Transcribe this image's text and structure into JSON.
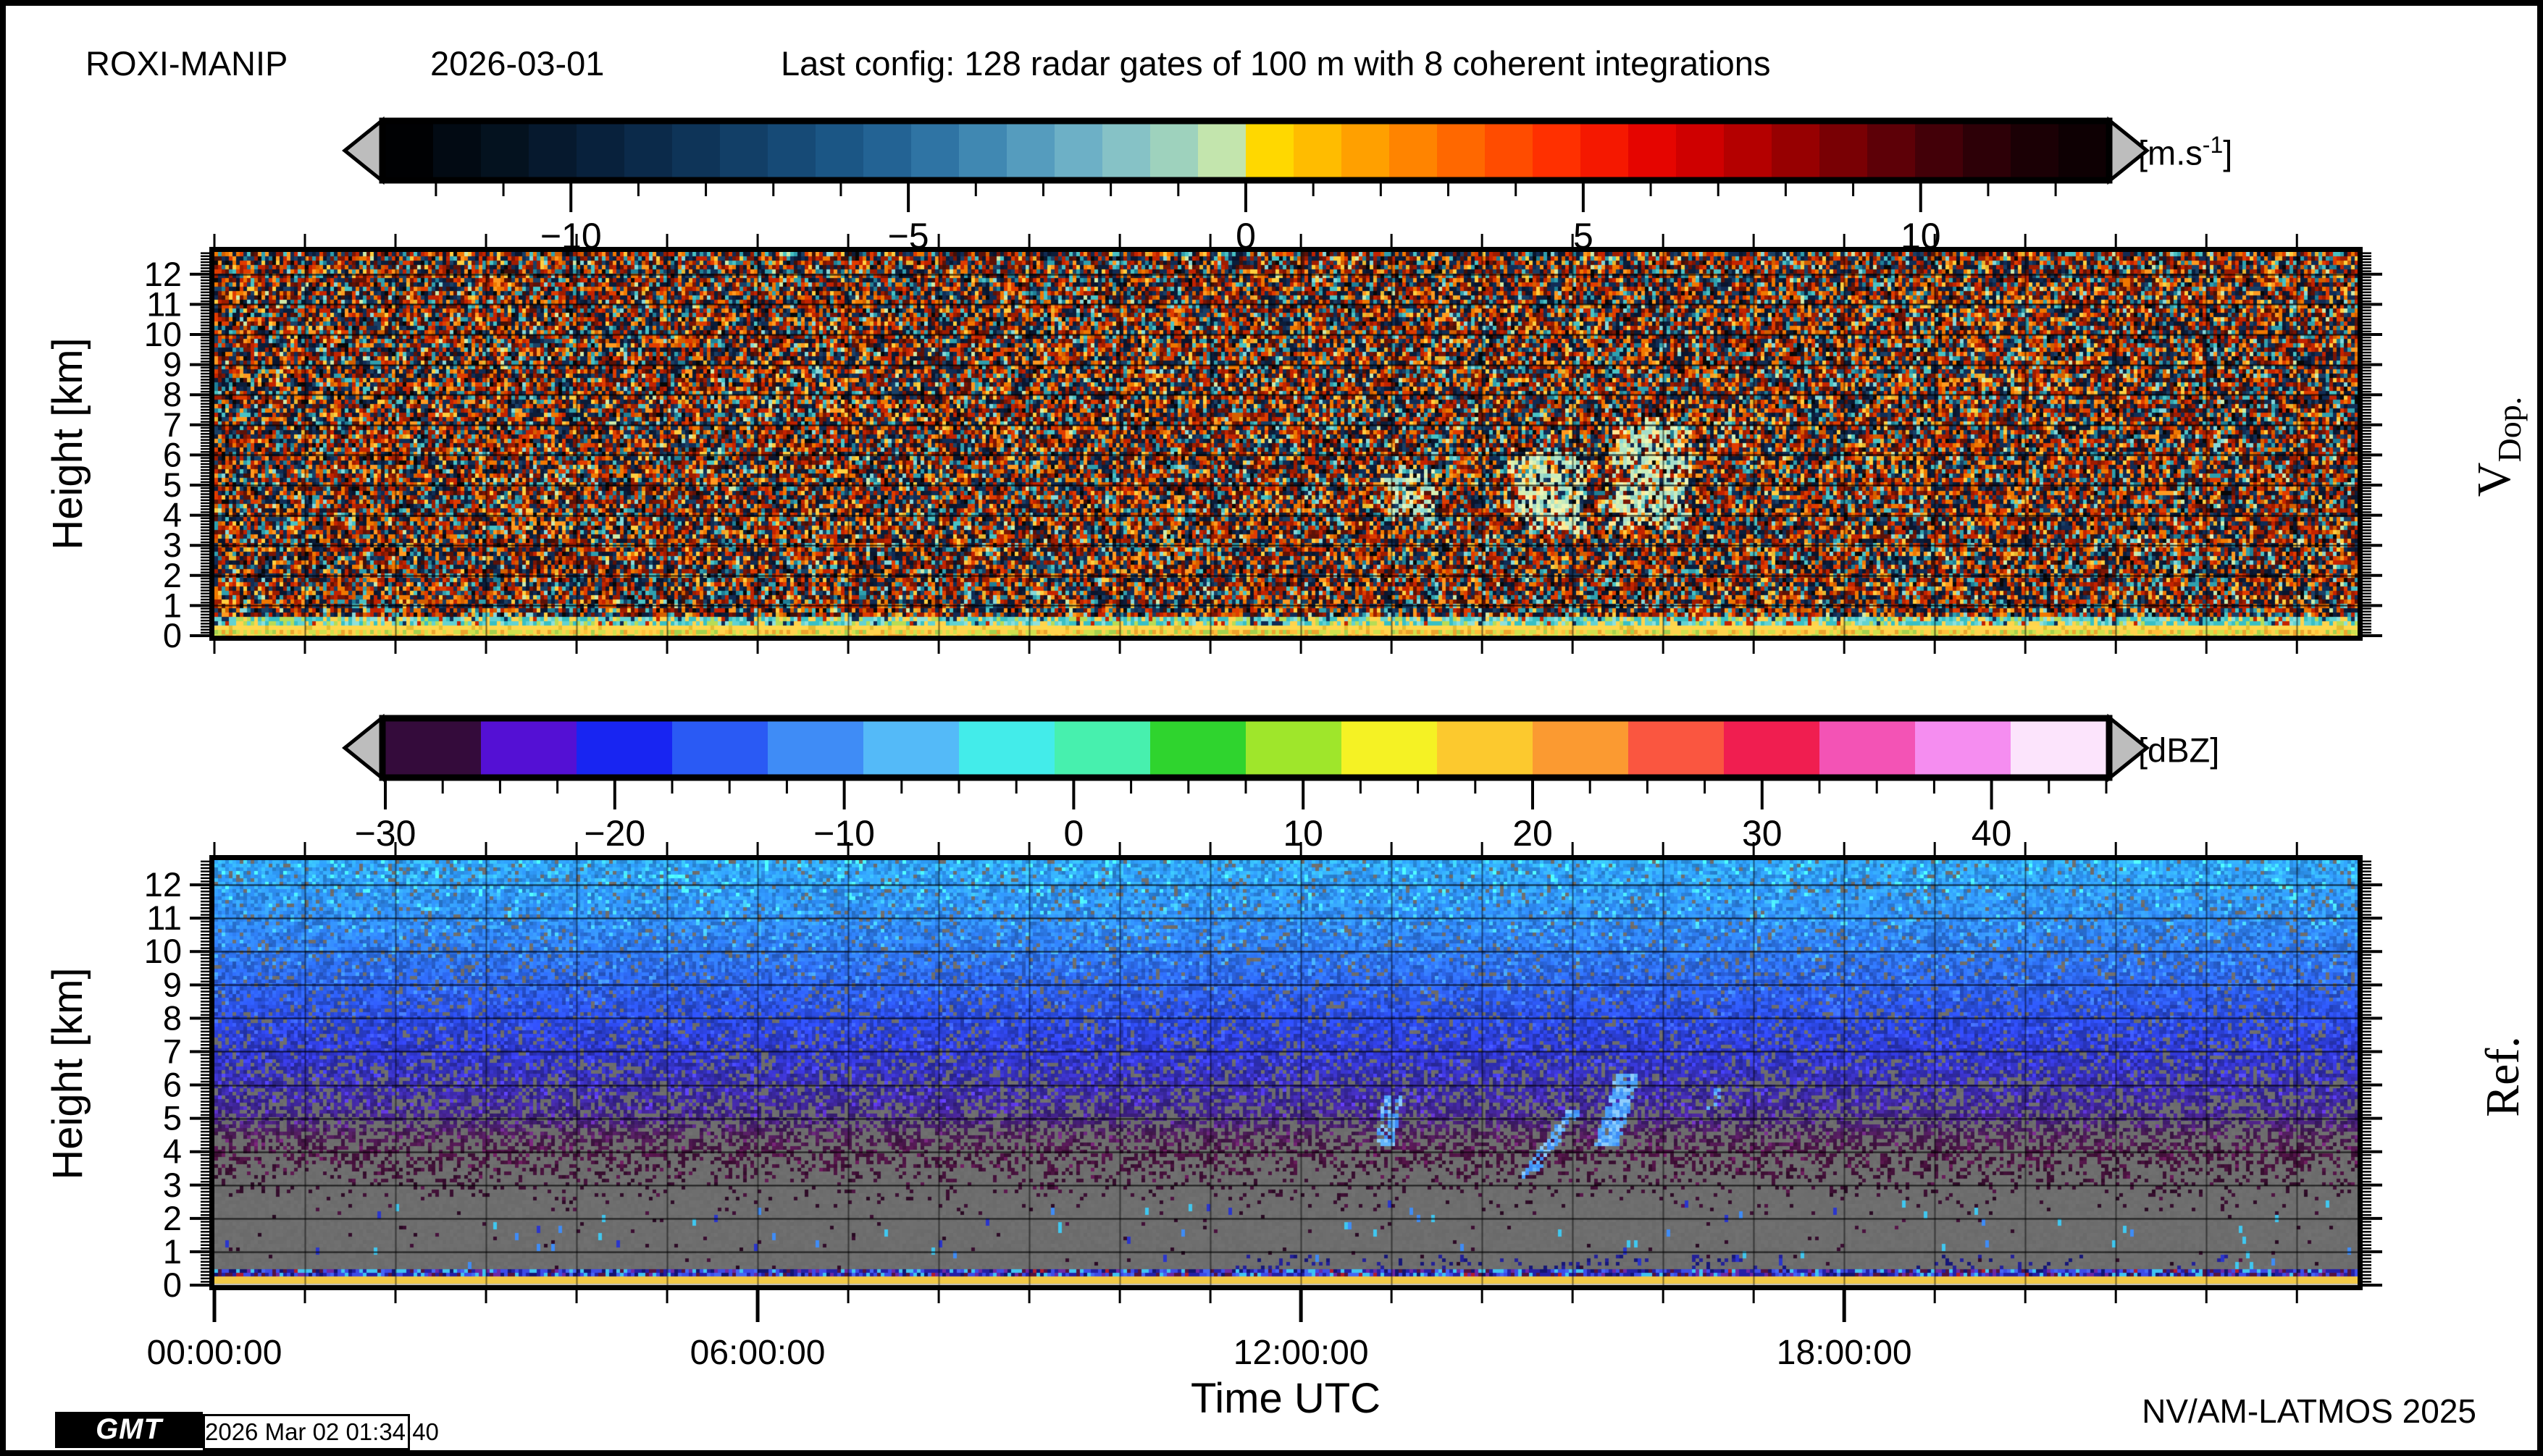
{
  "header": {
    "station": "ROXI-MANIP",
    "date": "2026-03-01",
    "config": "Last config: 128 radar gates of 100 m with 8 coherent integrations"
  },
  "footer": {
    "gmt_logo": "GMT",
    "timestamp": "2026 Mar 02 01:34:40",
    "credit": "NV/AM-LATMOS 2025"
  },
  "height_axis": {
    "min": 0,
    "max": 12.74,
    "major_step": 1,
    "minor_step": 0.1
  },
  "time_axis": {
    "label": "Time UTC",
    "start_hours": 0,
    "end_hours": 23.67,
    "minor_step_hours": 1,
    "major_ticks": [
      {
        "hours": 0,
        "label": "00:00:00"
      },
      {
        "hours": 6,
        "label": "06:00:00"
      },
      {
        "hours": 12,
        "label": "12:00:00"
      },
      {
        "hours": 18,
        "label": "18:00:00"
      }
    ]
  },
  "chart_data": [
    {
      "type": "heatmap",
      "id": "doppler_velocity",
      "side_label": {
        "main": "V",
        "sub": "Dop."
      },
      "ylabel": "Height [km]",
      "x_range_hours": [
        0,
        23.67
      ],
      "y_range_km": [
        0,
        12.74
      ],
      "seed": 20260301,
      "description": "Time-height Doppler velocity field dominated by incoherent speckle noise (random +/- velocities) over the full day; coherent pale-green near-zero-velocity precipitation echoes between ~12:50 and ~16:30 UTC at 3.5-7.5 km; yellow surface/clutter band below ~0.5 km; faint echo band near 3 km after ~20:30 UTC.",
      "colorbar": {
        "unit_pre": "[m.s",
        "unit_sup": "-1",
        "unit_post": "]",
        "min": -12.75,
        "max": 12.75,
        "minor_tick_step": 1,
        "major_tick_step": 5,
        "major_ticks": [
          {
            "v": -10,
            "label": "−10"
          },
          {
            "v": -5,
            "label": "−5"
          },
          {
            "v": 0,
            "label": "0"
          },
          {
            "v": 5,
            "label": "5"
          },
          {
            "v": 10,
            "label": "10"
          }
        ],
        "colors": [
          "#000103",
          "#020a13",
          "#04121f",
          "#06192e",
          "#08213c",
          "#0b2a4a",
          "#0e3458",
          "#123f67",
          "#164a76",
          "#1b5685",
          "#236394",
          "#2f74a4",
          "#4088b2",
          "#559cbe",
          "#6db0c6",
          "#86c2c6",
          "#9ed2bd",
          "#c3e5ad",
          "#ffd800",
          "#ffbc00",
          "#ffa000",
          "#ff8400",
          "#ff6800",
          "#ff4c00",
          "#ff3000",
          "#f51800",
          "#e50500",
          "#cf0000",
          "#b40000",
          "#970001",
          "#790004",
          "#5d0007",
          "#430008",
          "#2d0007",
          "#1b0005",
          "#0e0003"
        ]
      },
      "noise_palette": [
        [
          "#0b1d3a",
          0.09
        ],
        [
          "#112c55",
          0.09
        ],
        [
          "#0a152e",
          0.08
        ],
        [
          "#1a4066",
          0.06
        ],
        [
          "#c32300",
          0.08
        ],
        [
          "#e03c00",
          0.07
        ],
        [
          "#9e1c00",
          0.07
        ],
        [
          "#7a1505",
          0.05
        ],
        [
          "#f07800",
          0.06
        ],
        [
          "#ff9a20",
          0.05
        ],
        [
          "#d45f00",
          0.04
        ],
        [
          "#5c1208",
          0.05
        ],
        [
          "#411008",
          0.03
        ],
        [
          "#2f9fae",
          0.05
        ],
        [
          "#49c2c4",
          0.04
        ],
        [
          "#1f7f96",
          0.03
        ],
        [
          "#86d8d8",
          0.02
        ],
        [
          "#ffcf40",
          0.03
        ],
        [
          "#e8b830",
          0.015
        ],
        [
          "#070707",
          0.03
        ],
        [
          "#cfeaa8",
          0.01
        ]
      ],
      "echo_palette": [
        "#c8ecbe",
        "#b2e4c4",
        "#d8f0b2",
        "#a4ddca",
        "#e9f5bb",
        "#ffe993",
        "#8fd4c2"
      ],
      "echo_patches": [
        {
          "t0": 12.85,
          "t1": 13.55,
          "h0": 3.8,
          "h1": 5.8,
          "strength": 0.8
        },
        {
          "t0": 14.2,
          "t1": 15.2,
          "h0": 3.4,
          "h1": 6.4,
          "strength": 0.9
        },
        {
          "t0": 15.3,
          "t1": 16.35,
          "h0": 3.4,
          "h1": 7.4,
          "strength": 0.9
        },
        {
          "t0": 16.45,
          "t1": 17.0,
          "h0": 6.2,
          "h1": 7.6,
          "strength": 0.45
        },
        {
          "t0": 20.6,
          "t1": 23.67,
          "h0": 2.6,
          "h1": 3.5,
          "strength": 0.22
        }
      ],
      "surface": {
        "mix_band_top_km": 0.75,
        "mix_palette": [
          [
            "#39bfc4",
            0.25
          ],
          [
            "#63d2d2",
            0.2
          ],
          [
            "#8fe0da",
            0.12
          ],
          [
            "#ffd44d",
            0.2
          ],
          [
            "#b7dc56",
            0.13
          ],
          [
            "#112c55",
            0.05
          ],
          [
            "#c32300",
            0.05
          ]
        ],
        "yellow_band": {
          "h0": 0.2,
          "h1": 0.42,
          "color": "#ffd84e",
          "alt": "#e2bc32"
        },
        "floor_palette": [
          [
            "#cfe14e",
            0.3
          ],
          [
            "#ffd34d",
            0.3
          ],
          [
            "#eda32d",
            0.15
          ],
          [
            "#a3d14f",
            0.15
          ],
          [
            "#ffbf3a",
            0.1
          ]
        ]
      }
    },
    {
      "type": "heatmap",
      "id": "reflectivity",
      "side_label": {
        "main": "Ref.",
        "sub": ""
      },
      "ylabel": "Height [km]",
      "x_range_hours": [
        0,
        23.67
      ],
      "y_range_km": [
        0,
        12.74
      ],
      "seed": 20260302,
      "description": "Time-height radar reflectivity: noise floor decreasing downward from bright blue (~-13 dBZ) at 12.7 km through dark blue and purple to sparse maroon speckle below 4 km over a gray (no-signal) background; gray clear layer 0.5-3 km; light-blue precipitation fall streaks ~13:00, ~14:45 and ~15:30 UTC between 3 and 6.5 km; multicolour clutter stripe at ~0.45 km over a yellow surface band.",
      "colorbar": {
        "unit_pre": "[dBZ]",
        "unit_sup": "",
        "unit_post": "",
        "min": -30,
        "max": 45,
        "minor_tick_step": 2.5,
        "major_tick_step": 10,
        "major_ticks": [
          {
            "v": -30,
            "label": "−30"
          },
          {
            "v": -20,
            "label": "−20"
          },
          {
            "v": -10,
            "label": "−10"
          },
          {
            "v": 0,
            "label": "0"
          },
          {
            "v": 10,
            "label": "10"
          },
          {
            "v": 20,
            "label": "20"
          },
          {
            "v": 30,
            "label": "30"
          },
          {
            "v": 40,
            "label": "40"
          }
        ],
        "colors": [
          "#340b3b",
          "#5410d4",
          "#1825f2",
          "#2a5af4",
          "#3f8cf6",
          "#54baf8",
          "#43ecea",
          "#47f0ae",
          "#2fd42e",
          "#9fe62b",
          "#f5f224",
          "#fcc92e",
          "#fb9a31",
          "#fa5640",
          "#f01e50",
          "#f353b5",
          "#f58df0",
          "#fce4fc"
        ]
      },
      "base_color_stops": [
        [
          12.74,
          "#2f9df8"
        ],
        [
          11,
          "#2e84f0"
        ],
        [
          9.5,
          "#2b66e4"
        ],
        [
          8,
          "#2844d4"
        ],
        [
          7,
          "#2c33c0"
        ],
        [
          6,
          "#3629a2"
        ],
        [
          5.2,
          "#3d2187"
        ],
        [
          4.6,
          "#471a52"
        ],
        [
          4.0,
          "#47123e"
        ],
        [
          3.4,
          "#3d1034"
        ],
        [
          2.8,
          "#330d2b"
        ],
        [
          0.5,
          "#2d0a26"
        ]
      ],
      "gap_prob_stops": [
        [
          12.74,
          0.05
        ],
        [
          9,
          0.09
        ],
        [
          7,
          0.15
        ],
        [
          6,
          0.26
        ],
        [
          5,
          0.38
        ],
        [
          4.4,
          0.5
        ],
        [
          3.8,
          0.63
        ],
        [
          3.2,
          0.8
        ],
        [
          2.7,
          0.93
        ],
        [
          2.2,
          0.985
        ],
        [
          0.52,
          0.995
        ]
      ],
      "background_gray": "#6e6e6e",
      "fall_streaks": [
        {
          "t_top": 13.0,
          "t_bottom": 12.9,
          "h0": 4.2,
          "h1": 5.7,
          "halfwidth_h": 0.1,
          "prob": 0.7
        },
        {
          "t_top": 15.0,
          "t_bottom": 14.45,
          "h0": 3.2,
          "h1": 5.3,
          "halfwidth_h": 0.08,
          "prob": 0.7
        },
        {
          "t_top": 15.6,
          "t_bottom": 15.35,
          "h0": 4.2,
          "h1": 6.4,
          "halfwidth_h": 0.13,
          "prob": 0.85
        },
        {
          "t_top": 16.6,
          "t_bottom": 16.5,
          "h0": 5.2,
          "h1": 6.0,
          "halfwidth_h": 0.05,
          "prob": 0.3
        }
      ],
      "streak_palette": [
        "#4aa2fa",
        "#63b5fb",
        "#3f8cf6",
        "#8ecdfc"
      ],
      "low_level_dots": {
        "t_ranges": [
          [
            11.2,
            15.9
          ],
          [
            16.3,
            17.4
          ],
          [
            18.7,
            20.7
          ],
          [
            21.5,
            22.3
          ]
        ],
        "h0": 0.52,
        "h1": 0.95,
        "prob": 0.1,
        "colors": [
          "#232099",
          "#161678"
        ]
      },
      "sparse_dashes": {
        "below_km": 2.5,
        "prob": 0.006,
        "colors": [
          "#3f8cf6",
          "#40c8f0",
          "#2a35cc"
        ]
      },
      "surface": {
        "stripe": {
          "h0": 0.36,
          "h1": 0.52,
          "palette": [
            [
              "#241fa6",
              0.22
            ],
            [
              "#3c4ce8",
              0.2
            ],
            [
              "#3fc3f2",
              0.16
            ],
            [
              "#531343",
              0.14
            ],
            [
              "#6b28a6",
              0.1
            ],
            [
              "#131371",
              0.1
            ],
            [
              "#4466f4",
              0.06
            ],
            [
              "#b01c30",
              0.02
            ]
          ]
        },
        "yellow_band": {
          "h0": 0.14,
          "h1": 0.36,
          "color": "#f2c947"
        },
        "floor_color": "#bdbdbd"
      }
    }
  ]
}
